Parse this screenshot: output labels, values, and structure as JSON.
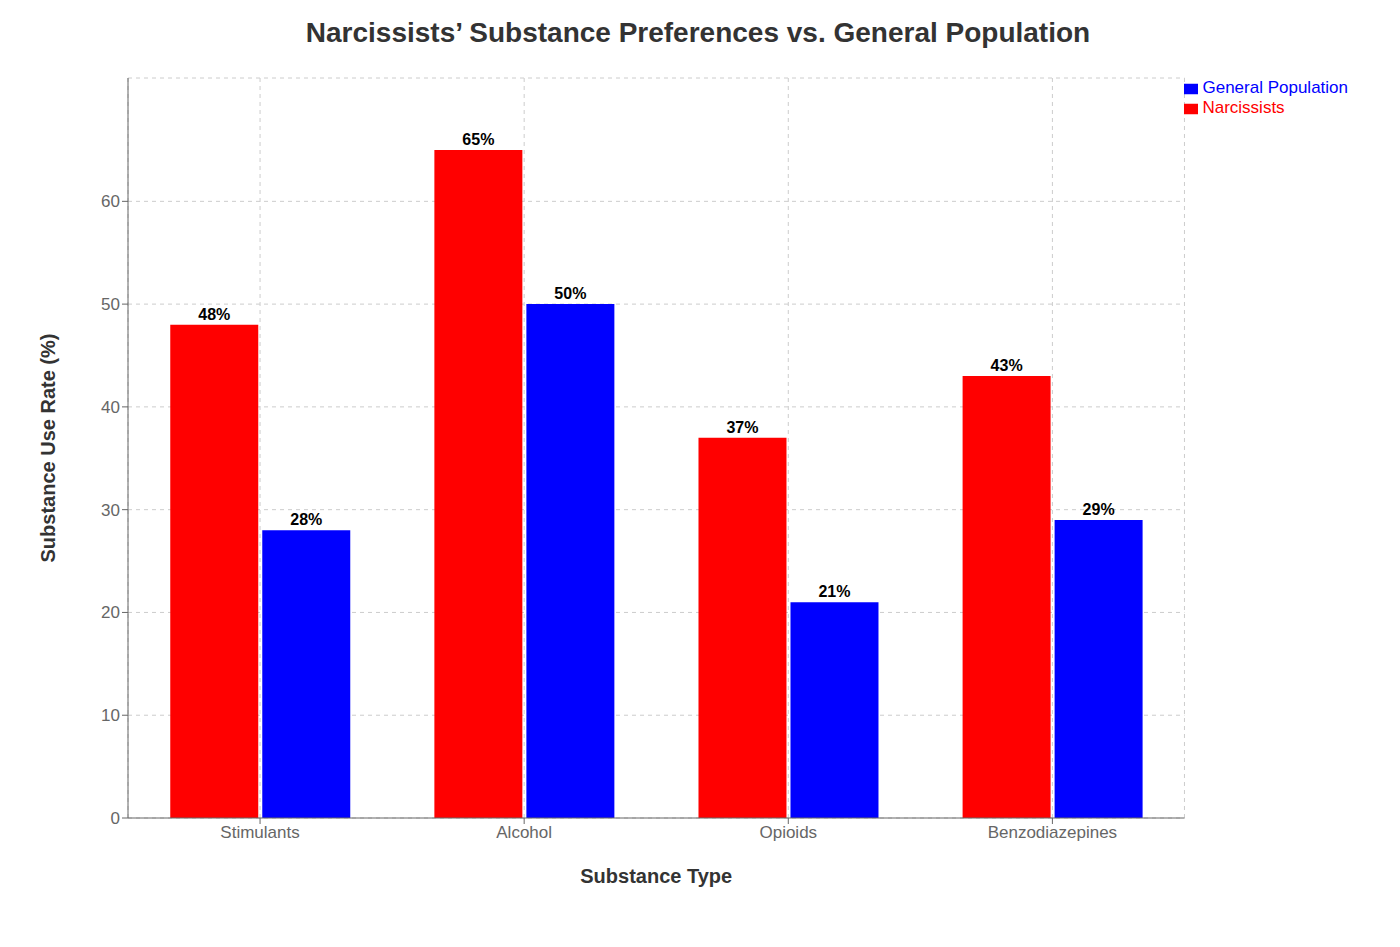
{
  "chart_data": {
    "type": "bar",
    "title": "Narcissists’ Substance Preferences vs. General Population",
    "xlabel": "Substance Type",
    "ylabel": "Substance Use Rate (%)",
    "categories": [
      "Stimulants",
      "Alcohol",
      "Opioids",
      "Benzodiazepines"
    ],
    "series": [
      {
        "name": "Narcissists",
        "color": "#ff0000",
        "values": [
          48,
          65,
          37,
          43
        ],
        "value_labels": [
          "48%",
          "65%",
          "37%",
          "43%"
        ]
      },
      {
        "name": "General Population",
        "color": "#0000ff",
        "values": [
          28,
          50,
          21,
          29
        ],
        "value_labels": [
          "28%",
          "50%",
          "21%",
          "29%"
        ]
      }
    ],
    "ylim": [
      0,
      72
    ],
    "yticks": [
      0,
      10,
      20,
      30,
      40,
      50,
      60
    ],
    "grid": true,
    "legend": "upper right",
    "data_labels": true
  }
}
